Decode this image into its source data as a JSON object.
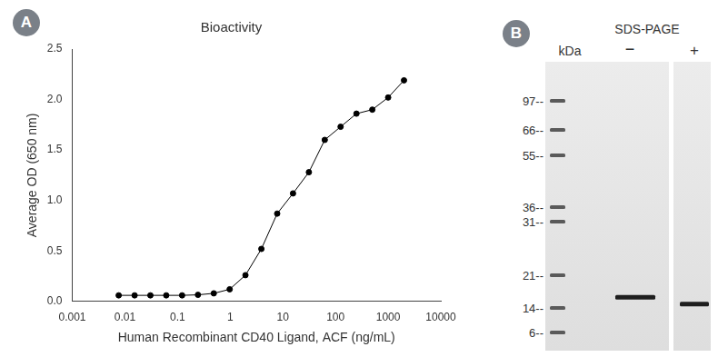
{
  "chart_data": {
    "type": "line",
    "title": "Bioactivity",
    "annotations": [
      "A"
    ],
    "x_label": "Human Recombinant CD40 Ligand, ACF (ng/mL)",
    "y_label": "Average OD (650 nm)",
    "x": [
      0.00763,
      0.0153,
      0.0305,
      0.061,
      0.122,
      0.244,
      0.488,
      0.977,
      1.95,
      3.91,
      7.81,
      15.6,
      31.25,
      62.5,
      125,
      250,
      500,
      1000,
      2000
    ],
    "values": [
      0.06,
      0.06,
      0.06,
      0.06,
      0.06,
      0.065,
      0.08,
      0.12,
      0.26,
      0.52,
      0.87,
      1.07,
      1.28,
      1.6,
      1.73,
      1.86,
      1.9,
      2.02,
      2.19
    ],
    "color": "#000000",
    "marker": "circle",
    "log": "x",
    "grid": false,
    "xlim": [
      0.001,
      10000
    ],
    "xticks": [
      0.001,
      0.01,
      0.1,
      1,
      10,
      100,
      1000,
      10000
    ],
    "ylim": [
      0,
      2.5
    ],
    "yticks": [
      {
        "value": 0,
        "label": "0.0"
      },
      0.5,
      {
        "value": 1,
        "label": "1.0"
      },
      1.5,
      {
        "value": 2,
        "label": "2.0"
      },
      2.5
    ]
  },
  "gel": {
    "panel_label": "B",
    "title": "SDS-PAGE",
    "axis_label": "kDa",
    "ladder": [
      {
        "value": 97,
        "label": "97--"
      },
      {
        "value": 66,
        "label": "66--"
      },
      {
        "value": 55,
        "label": "55--"
      },
      {
        "value": 36,
        "label": "36--"
      },
      {
        "value": 31,
        "label": "31--"
      },
      {
        "value": 21,
        "label": "21--"
      },
      {
        "value": 14,
        "label": "14--"
      },
      {
        "value": 6,
        "label": "6--"
      }
    ],
    "lanes": [
      {
        "label": "−",
        "band_kda": 16.0
      },
      {
        "label": "+",
        "band_kda": 14.7
      }
    ]
  }
}
